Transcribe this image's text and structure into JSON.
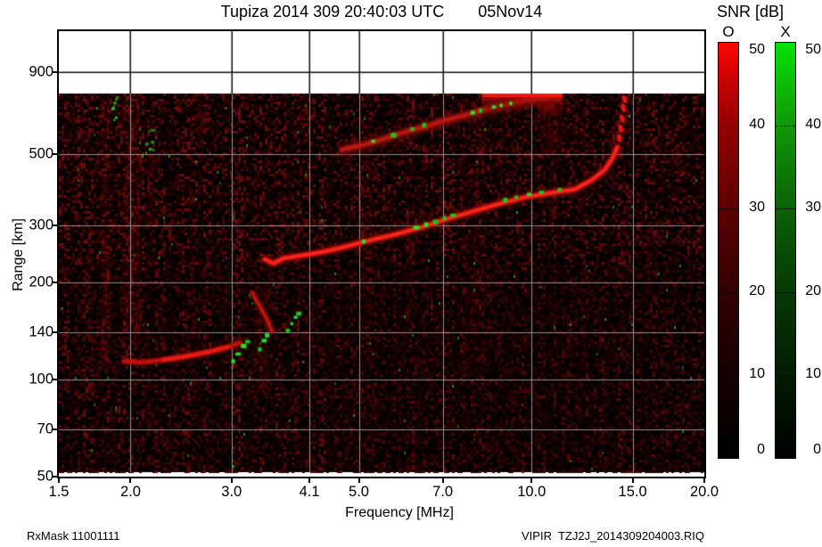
{
  "title": {
    "station_time": "Tupiza 2014 309 20:40:03 UTC",
    "date": "05Nov14"
  },
  "footer": {
    "rx_mask": "RxMask 11001111",
    "file": "VIPIR  TZJ2J_2014309204003.RIQ"
  },
  "colorbar": {
    "title": "SNR [dB]",
    "o_label": "O",
    "x_label": "X",
    "o_color": "#ff0000",
    "x_color": "#00e000",
    "min": 0,
    "max": 50,
    "ticks": [
      50,
      40,
      30,
      20,
      10,
      0
    ],
    "dash_ticks": [
      40,
      30,
      20,
      10
    ]
  },
  "axes": {
    "x": {
      "label": "Frequency [MHz]",
      "scale": "log",
      "min": 1.5,
      "max": 20,
      "ticks": [
        2.0,
        3.0,
        4.1,
        5.0,
        7.0,
        10.0,
        15.0
      ],
      "edge_ticks": [
        1.5,
        20.0
      ],
      "tick_labels": [
        "1.5",
        "2.0",
        "3.0",
        "4.1",
        "5.0",
        "7.0",
        "10.0",
        "15.0",
        "20.0"
      ],
      "tick_values": [
        1.5,
        2.0,
        3.0,
        4.1,
        5.0,
        7.0,
        10.0,
        15.0,
        20.0
      ]
    },
    "y": {
      "label": "Range [km]",
      "scale": "log",
      "min": 50,
      "max": 1200,
      "ticks": [
        900,
        500,
        300,
        200,
        140,
        100,
        70,
        50
      ],
      "tick_labels": [
        "900",
        "500",
        "300",
        "200",
        "140",
        "100",
        "70",
        "50"
      ],
      "data_top_km": 770
    }
  },
  "chart_data": {
    "type": "heatmap",
    "title": "Tupiza 2014 309 20:40:03 UTC 05Nov14",
    "xlabel": "Frequency [MHz]",
    "ylabel": "Range [km]",
    "x_unit": "MHz",
    "y_unit": "km",
    "xlim": [
      1.5,
      20
    ],
    "ylim_data": [
      50,
      770
    ],
    "snr_scale_db": [
      0,
      50
    ],
    "legend": [
      "O (ordinary, red)",
      "X (extraordinary, green)"
    ],
    "traces": {
      "f_layer_o": [
        [
          3.43,
          236
        ],
        [
          3.55,
          229
        ],
        [
          3.7,
          238
        ],
        [
          4.0,
          243
        ],
        [
          4.29,
          248
        ],
        [
          4.65,
          256
        ],
        [
          5.05,
          266
        ],
        [
          5.45,
          275
        ],
        [
          5.85,
          283
        ],
        [
          6.45,
          297
        ],
        [
          7.1,
          314
        ],
        [
          7.85,
          331
        ],
        [
          8.65,
          348
        ],
        [
          9.7,
          367
        ],
        [
          10.8,
          379
        ],
        [
          11.9,
          389
        ],
        [
          12.75,
          416
        ],
        [
          13.4,
          446
        ],
        [
          13.85,
          487
        ],
        [
          14.1,
          525
        ]
      ],
      "f_layer_asymptote_dashes": [
        [
          14.22,
          560
        ],
        [
          14.3,
          600
        ],
        [
          14.38,
          645
        ],
        [
          14.46,
          695
        ],
        [
          14.52,
          740
        ]
      ],
      "f_layer_x_patches": [
        [
          5.1,
          268
        ],
        [
          6.3,
          296
        ],
        [
          6.55,
          302
        ],
        [
          6.8,
          308
        ],
        [
          7.05,
          316
        ],
        [
          7.3,
          323
        ],
        [
          9.0,
          360
        ],
        [
          9.4,
          368
        ],
        [
          9.9,
          375
        ],
        [
          10.4,
          381
        ],
        [
          11.2,
          388
        ]
      ],
      "e_layer_o": [
        [
          1.95,
          114
        ],
        [
          2.1,
          113
        ],
        [
          2.28,
          115
        ],
        [
          2.5,
          118
        ],
        [
          2.75,
          122
        ],
        [
          2.95,
          126
        ],
        [
          3.1,
          130
        ]
      ],
      "e_streak_o": [
        [
          3.26,
          186
        ],
        [
          3.35,
          170
        ],
        [
          3.45,
          155
        ],
        [
          3.53,
          141
        ]
      ],
      "e_layer_x_patches": [
        [
          3.02,
          114
        ],
        [
          3.08,
          120
        ],
        [
          3.15,
          127
        ],
        [
          3.2,
          131
        ],
        [
          3.36,
          124
        ],
        [
          3.42,
          132
        ],
        [
          3.46,
          137
        ],
        [
          3.76,
          142
        ],
        [
          3.82,
          149
        ],
        [
          3.88,
          156
        ],
        [
          3.93,
          160
        ]
      ],
      "second_hop_o": [
        [
          4.67,
          516
        ],
        [
          5.1,
          535
        ],
        [
          5.6,
          562
        ],
        [
          6.1,
          590
        ],
        [
          6.6,
          612
        ],
        [
          7.1,
          638
        ],
        [
          7.7,
          662
        ],
        [
          8.3,
          688
        ],
        [
          8.9,
          706
        ],
        [
          9.6,
          728
        ],
        [
          10.4,
          748
        ],
        [
          11.2,
          757
        ]
      ],
      "second_hop_x_patches": [
        [
          5.3,
          548
        ],
        [
          5.75,
          572
        ],
        [
          6.2,
          598
        ],
        [
          6.5,
          615
        ],
        [
          7.9,
          672
        ],
        [
          8.15,
          682
        ],
        [
          8.6,
          700
        ],
        [
          8.85,
          708
        ],
        [
          9.2,
          718
        ]
      ],
      "top_blob": {
        "f_min": 8.2,
        "f_max": 11.3,
        "r_min": 725,
        "r_max": 772
      }
    },
    "interference_columns": [
      {
        "f": [
          1.77,
          1.84
        ],
        "r": [
          110,
          770
        ],
        "alpha": 0.3
      },
      {
        "f": [
          1.94,
          2.08
        ],
        "r": [
          140,
          770
        ],
        "alpha": 0.33
      },
      {
        "f": [
          2.14,
          2.2
        ],
        "r": [
          300,
          650
        ],
        "alpha": 0.18
      },
      {
        "f": [
          2.6,
          2.75
        ],
        "r": [
          600,
          770
        ],
        "alpha": 0.2
      },
      {
        "f": [
          2.5,
          2.58
        ],
        "r": [
          110,
          600
        ],
        "alpha": 0.1
      },
      {
        "f": [
          3.28,
          3.5
        ],
        "r": [
          90,
          195
        ],
        "alpha": 0.22
      },
      {
        "f": [
          3.9,
          4.2
        ],
        "r": [
          600,
          765
        ],
        "alpha": 0.16
      },
      {
        "f": [
          5.0,
          5.3
        ],
        "r": [
          110,
          760
        ],
        "alpha": 0.1
      },
      {
        "f": [
          6.0,
          6.2
        ],
        "r": [
          110,
          500
        ],
        "alpha": 0.08
      },
      {
        "f": [
          7.5,
          8.3
        ],
        "r": [
          100,
          740
        ],
        "alpha": 0.1
      },
      {
        "f": [
          10.3,
          11.6
        ],
        "r": [
          480,
          745
        ],
        "alpha": 0.22
      },
      {
        "f": [
          12.1,
          12.5
        ],
        "r": [
          110,
          600
        ],
        "alpha": 0.08
      },
      {
        "f": [
          15.8,
          16.2
        ],
        "r": [
          110,
          300
        ],
        "alpha": 0.06
      },
      {
        "f": [
          17.4,
          18.7
        ],
        "r": [
          480,
          700
        ],
        "alpha": 0.1
      }
    ],
    "green_columns": [
      {
        "f": [
          1.85,
          1.89
        ],
        "r": [
          620,
          765
        ]
      },
      {
        "f": [
          2.12,
          2.19
        ],
        "r": [
          470,
          620
        ]
      }
    ]
  }
}
